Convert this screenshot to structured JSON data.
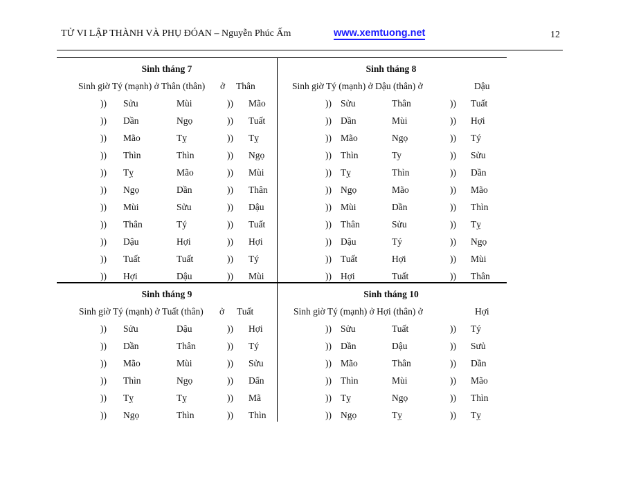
{
  "header": {
    "title": "TỬ VI LẬP THÀNH VÀ PHỤ ĐÓAN – Nguyễn Phúc Ấm",
    "link": "www.xemtuong.net",
    "page_number": "12"
  },
  "sections": [
    {
      "title": "Sinh tháng 7",
      "subtitle": "Sinh giờ Tý (mạnh) ở Thân (thân)",
      "subtitle_o": "ở",
      "subtitle_value": "Thân",
      "rows": [
        [
          "))",
          "Sửu",
          "Mùi",
          "))",
          "Mão"
        ],
        [
          "))",
          "Dần",
          "Ngọ",
          "))",
          "Tuất"
        ],
        [
          "))",
          "Mão",
          "Tỵ",
          "))",
          "Tỵ"
        ],
        [
          "))",
          "Thìn",
          "Thìn",
          "))",
          "Ngọ"
        ],
        [
          "))",
          "Tỵ",
          "Mão",
          "))",
          "Mùi"
        ],
        [
          "))",
          "Ngọ",
          "Dần",
          "))",
          "Thân"
        ],
        [
          "))",
          "Mùi",
          "Sửu",
          "))",
          "Dậu"
        ],
        [
          "))",
          "Thân",
          "Tý",
          "))",
          "Tuất"
        ],
        [
          "))",
          "Dậu",
          "Hợi",
          "))",
          "Hợi"
        ],
        [
          "))",
          "Tuất",
          "Tuất",
          "))",
          "Tý"
        ],
        [
          "))",
          "Hợi",
          "Dậu",
          "))",
          "Mùi"
        ]
      ]
    },
    {
      "title": "Sinh tháng 8",
      "subtitle": "Sinh giờ Tý (mạnh) ở Dậu (thân) ở",
      "subtitle_o": "",
      "subtitle_value": "Dậu",
      "rows": [
        [
          "))",
          "Sửu",
          "Thân",
          "))",
          "Tuất"
        ],
        [
          "))",
          "Dần",
          "Mùi",
          "))",
          "Hợi"
        ],
        [
          "))",
          "Mão",
          "Ngọ",
          "))",
          "Tý"
        ],
        [
          "))",
          "Thìn",
          "Ty",
          "))",
          "Sửu"
        ],
        [
          "))",
          "Tỵ",
          "Thìn",
          "))",
          "Dần"
        ],
        [
          "))",
          "Ngọ",
          "Mão",
          "))",
          "Mão"
        ],
        [
          "))",
          "Mùi",
          "Dần",
          "))",
          "Thìn"
        ],
        [
          "))",
          "Thân",
          "Sửu",
          "))",
          "Tỵ"
        ],
        [
          "))",
          "Dậu",
          "Tý",
          "))",
          "Ngọ"
        ],
        [
          "))",
          "Tuất",
          "Hợi",
          "))",
          "Mùi"
        ],
        [
          "))",
          "Hợi",
          "Tuất",
          "))",
          "Thân"
        ]
      ]
    },
    {
      "title": "Sinh tháng 9",
      "subtitle": "Sinh giờ Tý (mạnh) ở Tuất (thân)",
      "subtitle_o": "ở",
      "subtitle_value": "Tuất",
      "rows": [
        [
          "))",
          "Sửu",
          "Dậu",
          "))",
          "Hợi"
        ],
        [
          "))",
          "Dần",
          "Thân",
          "))",
          "Tý"
        ],
        [
          "))",
          "Mão",
          "Mùi",
          "))",
          "Sửu"
        ],
        [
          "))",
          "Thìn",
          "Ngọ",
          "))",
          "Dẩn"
        ],
        [
          "))",
          "Tỵ",
          "Tỵ",
          "))",
          "Mã"
        ],
        [
          "))",
          "Ngọ",
          "Thìn",
          "))",
          "Thìn"
        ]
      ]
    },
    {
      "title": "Sinh tháng 10",
      "subtitle": "Sinh giờ Tý (mạnh) ở Hợi (thân)  ở",
      "subtitle_o": "",
      "subtitle_value": "Hợi",
      "rows": [
        [
          "))",
          "Sửu",
          "Tuất",
          "))",
          "Tý"
        ],
        [
          "))",
          "Dần",
          "Dậu",
          "))",
          "Sưủ"
        ],
        [
          "))",
          "Mão",
          "Thân",
          "))",
          "Dần"
        ],
        [
          "))",
          "Thìn",
          "Mùi",
          "))",
          "Mão"
        ],
        [
          "))",
          "Tỵ",
          "Ngọ",
          "))",
          "Thìn"
        ],
        [
          "))",
          "Ngọ",
          "Tỵ",
          "))",
          "Tỵ"
        ]
      ]
    }
  ]
}
